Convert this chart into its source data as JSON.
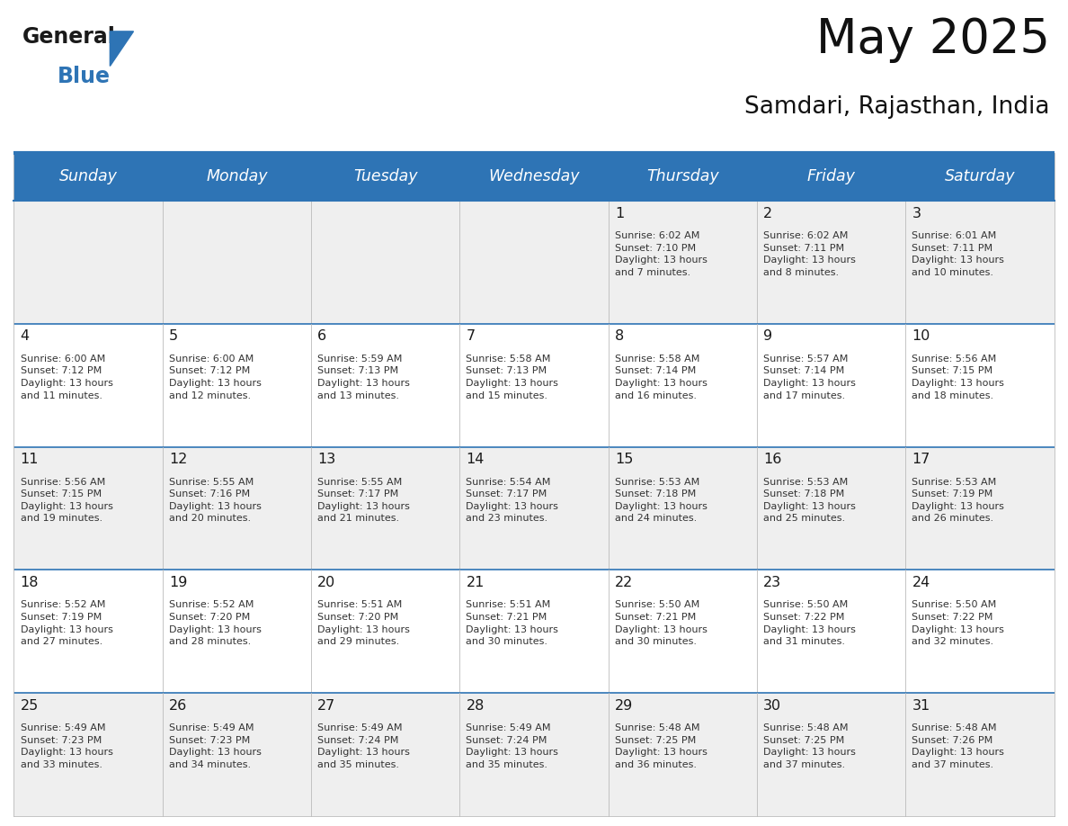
{
  "title": "May 2025",
  "subtitle": "Samdari, Rajasthan, India",
  "header_bg_color": "#2E74B5",
  "header_text_color": "#FFFFFF",
  "row_bg_colors": [
    "#EFEFEF",
    "#FFFFFF",
    "#EFEFEF",
    "#FFFFFF",
    "#EFEFEF"
  ],
  "divider_color": "#2E74B5",
  "text_color": "#333333",
  "day_num_color": "#1a1a1a",
  "days_of_week": [
    "Sunday",
    "Monday",
    "Tuesday",
    "Wednesday",
    "Thursday",
    "Friday",
    "Saturday"
  ],
  "weeks": [
    [
      {
        "day": "",
        "info": ""
      },
      {
        "day": "",
        "info": ""
      },
      {
        "day": "",
        "info": ""
      },
      {
        "day": "",
        "info": ""
      },
      {
        "day": "1",
        "info": "Sunrise: 6:02 AM\nSunset: 7:10 PM\nDaylight: 13 hours\nand 7 minutes."
      },
      {
        "day": "2",
        "info": "Sunrise: 6:02 AM\nSunset: 7:11 PM\nDaylight: 13 hours\nand 8 minutes."
      },
      {
        "day": "3",
        "info": "Sunrise: 6:01 AM\nSunset: 7:11 PM\nDaylight: 13 hours\nand 10 minutes."
      }
    ],
    [
      {
        "day": "4",
        "info": "Sunrise: 6:00 AM\nSunset: 7:12 PM\nDaylight: 13 hours\nand 11 minutes."
      },
      {
        "day": "5",
        "info": "Sunrise: 6:00 AM\nSunset: 7:12 PM\nDaylight: 13 hours\nand 12 minutes."
      },
      {
        "day": "6",
        "info": "Sunrise: 5:59 AM\nSunset: 7:13 PM\nDaylight: 13 hours\nand 13 minutes."
      },
      {
        "day": "7",
        "info": "Sunrise: 5:58 AM\nSunset: 7:13 PM\nDaylight: 13 hours\nand 15 minutes."
      },
      {
        "day": "8",
        "info": "Sunrise: 5:58 AM\nSunset: 7:14 PM\nDaylight: 13 hours\nand 16 minutes."
      },
      {
        "day": "9",
        "info": "Sunrise: 5:57 AM\nSunset: 7:14 PM\nDaylight: 13 hours\nand 17 minutes."
      },
      {
        "day": "10",
        "info": "Sunrise: 5:56 AM\nSunset: 7:15 PM\nDaylight: 13 hours\nand 18 minutes."
      }
    ],
    [
      {
        "day": "11",
        "info": "Sunrise: 5:56 AM\nSunset: 7:15 PM\nDaylight: 13 hours\nand 19 minutes."
      },
      {
        "day": "12",
        "info": "Sunrise: 5:55 AM\nSunset: 7:16 PM\nDaylight: 13 hours\nand 20 minutes."
      },
      {
        "day": "13",
        "info": "Sunrise: 5:55 AM\nSunset: 7:17 PM\nDaylight: 13 hours\nand 21 minutes."
      },
      {
        "day": "14",
        "info": "Sunrise: 5:54 AM\nSunset: 7:17 PM\nDaylight: 13 hours\nand 23 minutes."
      },
      {
        "day": "15",
        "info": "Sunrise: 5:53 AM\nSunset: 7:18 PM\nDaylight: 13 hours\nand 24 minutes."
      },
      {
        "day": "16",
        "info": "Sunrise: 5:53 AM\nSunset: 7:18 PM\nDaylight: 13 hours\nand 25 minutes."
      },
      {
        "day": "17",
        "info": "Sunrise: 5:53 AM\nSunset: 7:19 PM\nDaylight: 13 hours\nand 26 minutes."
      }
    ],
    [
      {
        "day": "18",
        "info": "Sunrise: 5:52 AM\nSunset: 7:19 PM\nDaylight: 13 hours\nand 27 minutes."
      },
      {
        "day": "19",
        "info": "Sunrise: 5:52 AM\nSunset: 7:20 PM\nDaylight: 13 hours\nand 28 minutes."
      },
      {
        "day": "20",
        "info": "Sunrise: 5:51 AM\nSunset: 7:20 PM\nDaylight: 13 hours\nand 29 minutes."
      },
      {
        "day": "21",
        "info": "Sunrise: 5:51 AM\nSunset: 7:21 PM\nDaylight: 13 hours\nand 30 minutes."
      },
      {
        "day": "22",
        "info": "Sunrise: 5:50 AM\nSunset: 7:21 PM\nDaylight: 13 hours\nand 30 minutes."
      },
      {
        "day": "23",
        "info": "Sunrise: 5:50 AM\nSunset: 7:22 PM\nDaylight: 13 hours\nand 31 minutes."
      },
      {
        "day": "24",
        "info": "Sunrise: 5:50 AM\nSunset: 7:22 PM\nDaylight: 13 hours\nand 32 minutes."
      }
    ],
    [
      {
        "day": "25",
        "info": "Sunrise: 5:49 AM\nSunset: 7:23 PM\nDaylight: 13 hours\nand 33 minutes."
      },
      {
        "day": "26",
        "info": "Sunrise: 5:49 AM\nSunset: 7:23 PM\nDaylight: 13 hours\nand 34 minutes."
      },
      {
        "day": "27",
        "info": "Sunrise: 5:49 AM\nSunset: 7:24 PM\nDaylight: 13 hours\nand 35 minutes."
      },
      {
        "day": "28",
        "info": "Sunrise: 5:49 AM\nSunset: 7:24 PM\nDaylight: 13 hours\nand 35 minutes."
      },
      {
        "day": "29",
        "info": "Sunrise: 5:48 AM\nSunset: 7:25 PM\nDaylight: 13 hours\nand 36 minutes."
      },
      {
        "day": "30",
        "info": "Sunrise: 5:48 AM\nSunset: 7:25 PM\nDaylight: 13 hours\nand 37 minutes."
      },
      {
        "day": "31",
        "info": "Sunrise: 5:48 AM\nSunset: 7:26 PM\nDaylight: 13 hours\nand 37 minutes."
      }
    ]
  ],
  "logo_text_general": "General",
  "logo_text_blue": "Blue",
  "logo_color_general": "#1a1a1a",
  "logo_color_blue": "#2E74B5",
  "logo_triangle_color": "#2E74B5",
  "fig_width": 11.88,
  "fig_height": 9.18,
  "dpi": 100
}
